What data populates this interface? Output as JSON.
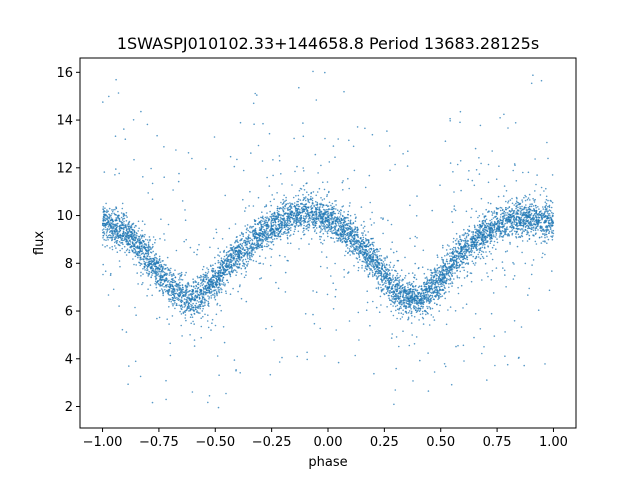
{
  "chart_data": {
    "type": "scatter",
    "title": "1SWASPJ010102.33+144658.8 Period 13683.28125s",
    "xlabel": "phase",
    "ylabel": "flux",
    "xlim": [
      -1.1,
      1.1
    ],
    "ylim": [
      1.1,
      16.6
    ],
    "xticks": [
      -1.0,
      -0.75,
      -0.5,
      -0.25,
      0.0,
      0.25,
      0.5,
      0.75,
      1.0
    ],
    "xtick_labels": [
      "−1.00",
      "−0.75",
      "−0.50",
      "−0.25",
      "0.00",
      "0.25",
      "0.50",
      "0.75",
      "1.00"
    ],
    "yticks": [
      2,
      4,
      6,
      8,
      10,
      12,
      14,
      16
    ],
    "ytick_labels": [
      "2",
      "4",
      "6",
      "8",
      "10",
      "12",
      "14",
      "16"
    ],
    "grid": false,
    "point_color": "#1f77b4",
    "series": [
      {
        "phase": [
          -1.0,
          -0.9,
          -0.8,
          -0.7,
          -0.6,
          -0.5,
          -0.4,
          -0.3,
          -0.2,
          -0.1,
          0.0,
          0.1,
          0.2,
          0.3,
          0.4,
          0.5,
          0.6,
          0.7,
          0.8,
          0.9,
          1.0
        ],
        "flux": [
          9.7,
          9.3,
          8.3,
          7.0,
          6.4,
          7.3,
          8.4,
          9.2,
          9.8,
          10.1,
          9.9,
          9.2,
          8.1,
          6.8,
          6.4,
          7.3,
          8.6,
          9.3,
          9.8,
          9.9,
          9.7
        ]
      }
    ]
  }
}
